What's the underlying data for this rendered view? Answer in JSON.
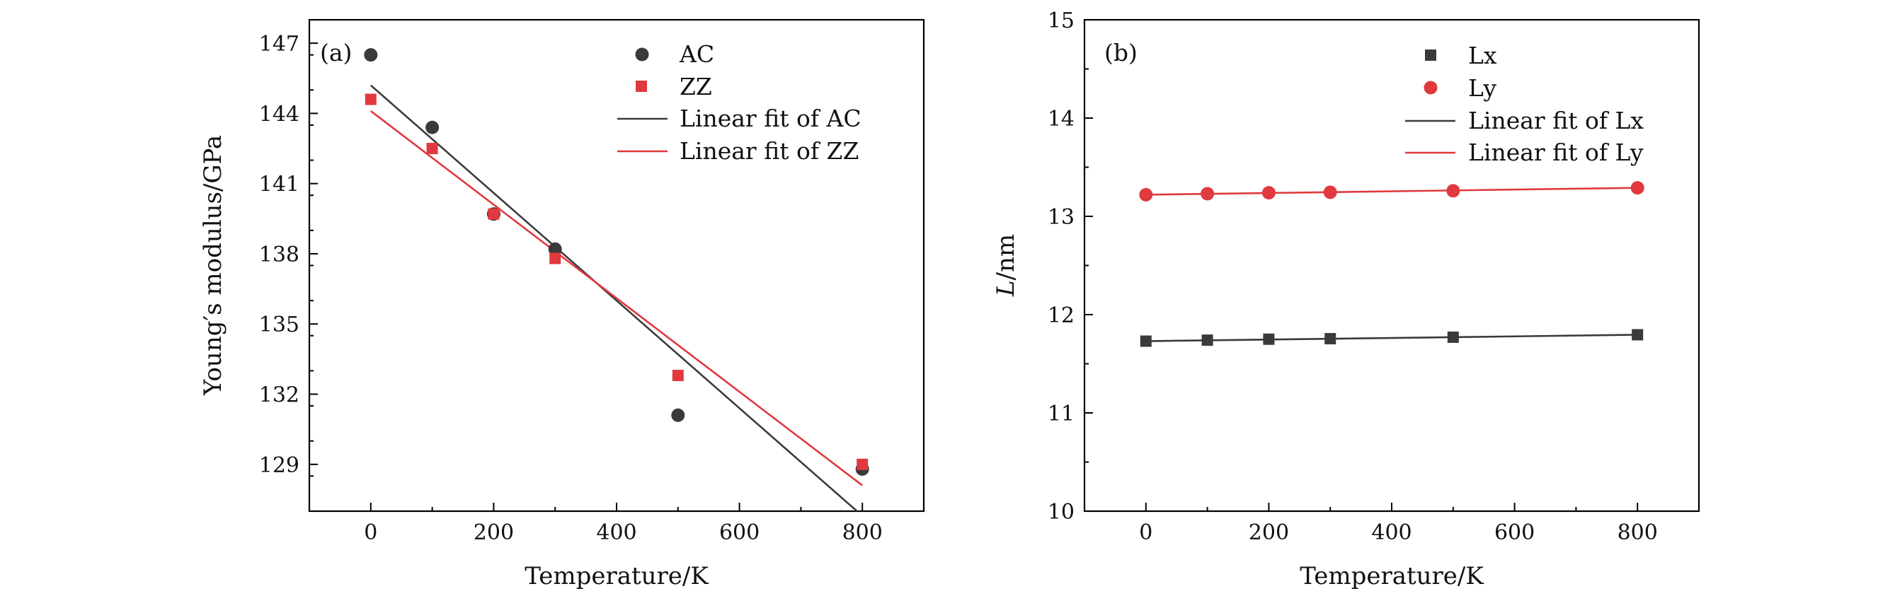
{
  "chart_data": [
    {
      "type": "scatter",
      "panel_label": "(a)",
      "xlabel": "Temperature/K",
      "ylabel": "Young′s modulus/GPa",
      "xlim": [
        -100,
        900
      ],
      "ylim": [
        127,
        148
      ],
      "x_ticks": [
        0,
        200,
        400,
        600,
        800
      ],
      "x_tick_labels": [
        "0",
        "200",
        "400",
        "600",
        "800"
      ],
      "y_ticks": [
        129,
        132,
        135,
        138,
        141,
        144,
        147
      ],
      "y_tick_labels": [
        "129",
        "132",
        "135",
        "138",
        "141",
        "144",
        "147"
      ],
      "legend_position": "top-right",
      "series": [
        {
          "name": "AC",
          "marker": "circle",
          "color": "#3a3a3a",
          "x": [
            0,
            100,
            200,
            300,
            500,
            800
          ],
          "y": [
            146.5,
            143.4,
            139.7,
            138.2,
            131.1,
            128.8
          ]
        },
        {
          "name": "ZZ",
          "marker": "square",
          "color": "#e0393e",
          "x": [
            0,
            100,
            200,
            300,
            500,
            800
          ],
          "y": [
            144.6,
            142.5,
            139.7,
            137.8,
            132.8,
            129.0
          ]
        }
      ],
      "fits": [
        {
          "name": "Linear fit of AC",
          "color": "#3a3a3a",
          "x": [
            0,
            800
          ],
          "y": [
            145.2,
            126.8
          ]
        },
        {
          "name": "Linear fit of ZZ",
          "color": "#e0393e",
          "x": [
            0,
            800
          ],
          "y": [
            144.1,
            128.1
          ]
        }
      ]
    },
    {
      "type": "scatter",
      "panel_label": "(b)",
      "xlabel": "Temperature/K",
      "ylabel_italic": "L",
      "ylabel_rest": "/nm",
      "xlim": [
        -100,
        900
      ],
      "ylim": [
        10,
        15
      ],
      "x_ticks": [
        0,
        200,
        400,
        600,
        800
      ],
      "x_tick_labels": [
        "0",
        "200",
        "400",
        "600",
        "800"
      ],
      "y_ticks": [
        10,
        11,
        12,
        13,
        14,
        15
      ],
      "y_tick_labels": [
        "10",
        "11",
        "12",
        "13",
        "14",
        "15"
      ],
      "legend_position": "top-right",
      "series": [
        {
          "name": "Lx",
          "marker": "square",
          "color": "#3a3a3a",
          "x": [
            0,
            100,
            200,
            300,
            500,
            800
          ],
          "y": [
            11.73,
            11.74,
            11.75,
            11.755,
            11.77,
            11.795
          ]
        },
        {
          "name": "Ly",
          "marker": "circle",
          "color": "#e0393e",
          "x": [
            0,
            100,
            200,
            300,
            500,
            800
          ],
          "y": [
            13.22,
            13.23,
            13.24,
            13.245,
            13.26,
            13.29
          ]
        }
      ],
      "fits": [
        {
          "name": "Linear fit of Lx",
          "color": "#3a3a3a",
          "x": [
            0,
            800
          ],
          "y": [
            11.73,
            11.795
          ]
        },
        {
          "name": "Linear fit of Ly",
          "color": "#e0393e",
          "x": [
            0,
            800
          ],
          "y": [
            13.22,
            13.29
          ]
        }
      ]
    }
  ]
}
